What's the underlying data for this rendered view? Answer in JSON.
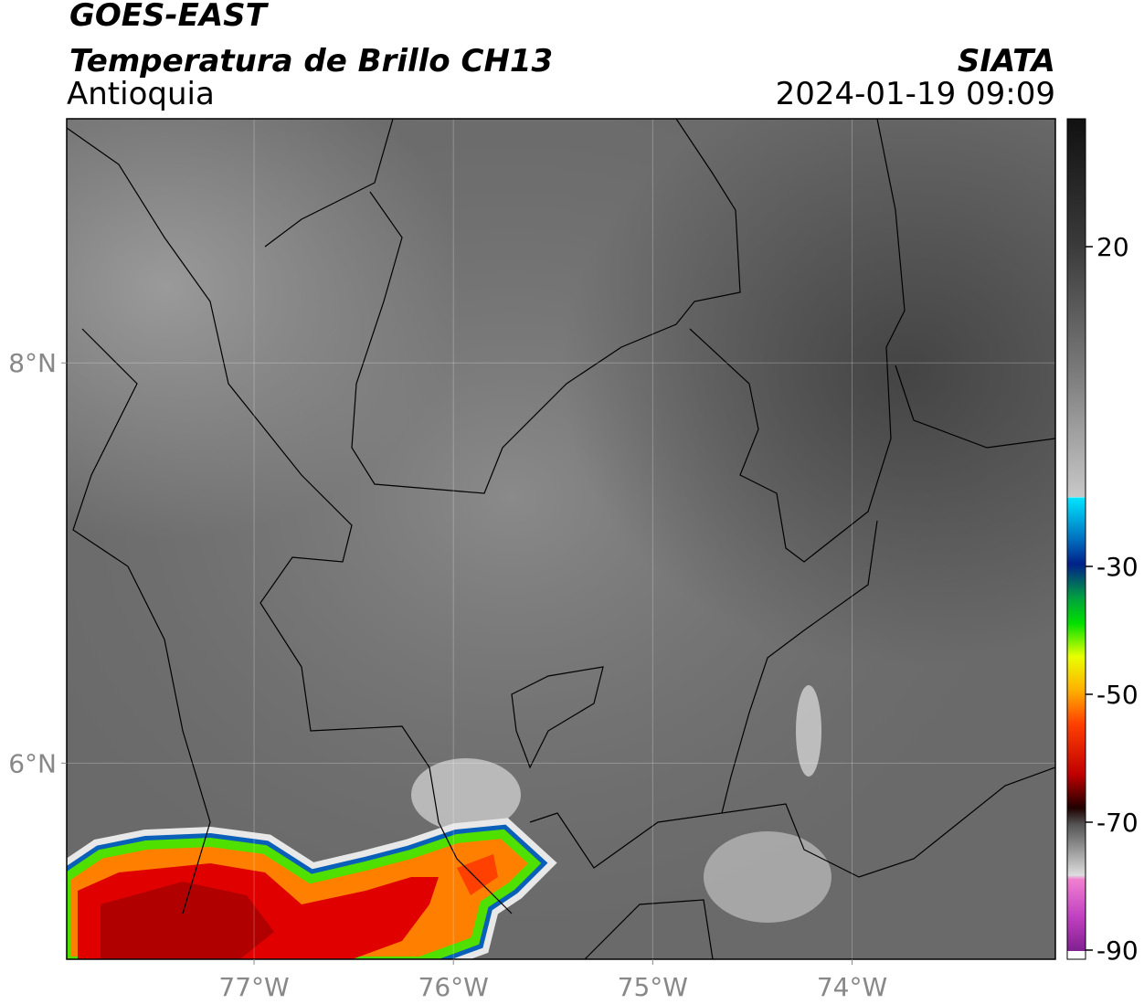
{
  "header": {
    "title": "GOES-EAST",
    "subtitle": "Temperatura de Brillo CH13",
    "region": "Antioquia",
    "source": "SIATA",
    "datetime": "2024-01-19 09:09"
  },
  "map": {
    "xlim": [
      -77.94,
      -72.98
    ],
    "ylim": [
      5.02,
      9.22
    ],
    "xticks": [
      {
        "value": -77,
        "label": "77°W"
      },
      {
        "value": -76,
        "label": "76°W"
      },
      {
        "value": -75,
        "label": "75°W"
      },
      {
        "value": -74,
        "label": "74°W"
      }
    ],
    "yticks": [
      {
        "value": 6,
        "label": "6°N"
      },
      {
        "value": 8,
        "label": "8°N"
      }
    ],
    "grid": true
  },
  "colorbar": {
    "lim": [
      -90,
      40
    ],
    "ticks": [
      20,
      -30,
      -50,
      -70,
      -90
    ]
  }
}
